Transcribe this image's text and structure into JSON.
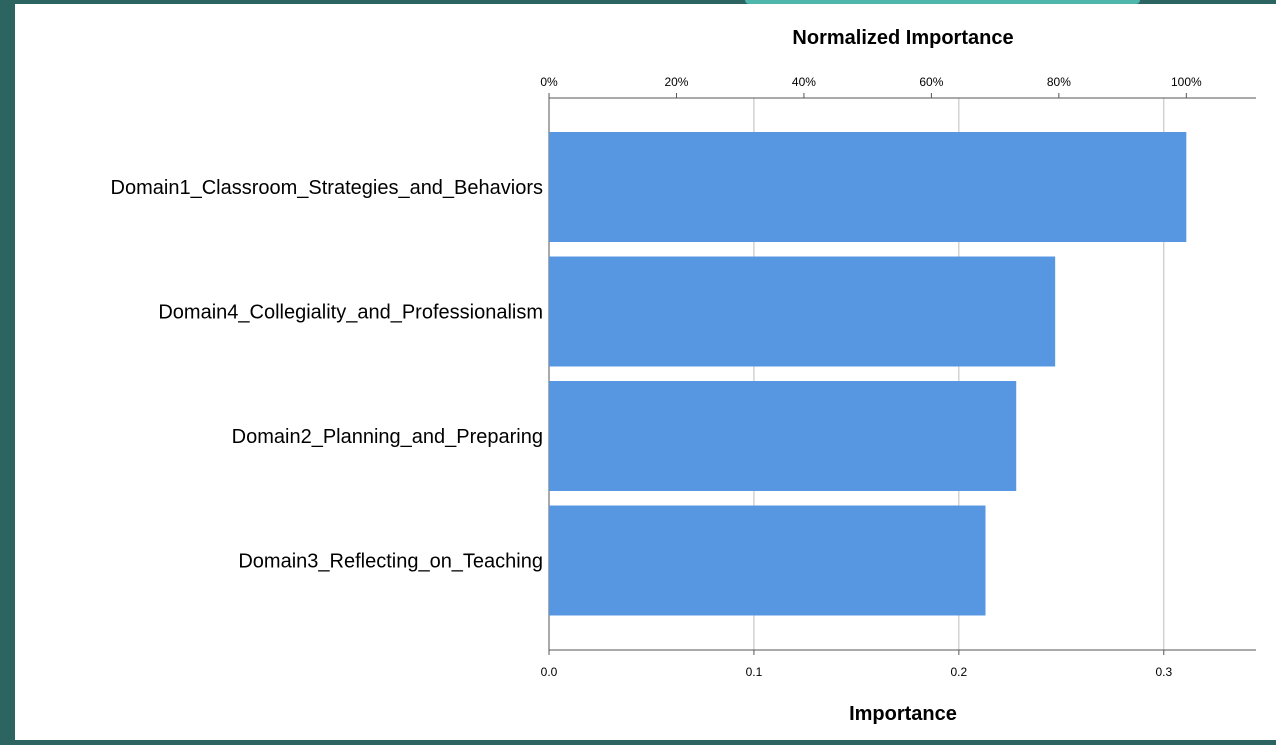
{
  "chart_data": {
    "type": "bar",
    "orientation": "horizontal",
    "categories": [
      "Domain1_Classroom_Strategies_and_Behaviors",
      "Domain4_Collegiality_and_Professionalism",
      "Domain2_Planning_and_Preparing",
      "Domain3_Reflecting_on_Teaching"
    ],
    "values": [
      0.311,
      0.247,
      0.228,
      0.213
    ],
    "xlabel": "Importance",
    "top_axis_label": "Normalized Importance",
    "xlim": [
      0,
      0.345
    ],
    "bottom_ticks": [
      0.0,
      0.1,
      0.2,
      0.3
    ],
    "bottom_tick_labels": [
      "0.0",
      "0.1",
      "0.2",
      "0.3"
    ],
    "top_ticks": [
      0,
      0.2,
      0.4,
      0.6,
      0.8,
      1.0
    ],
    "top_tick_labels": [
      "0%",
      "20%",
      "40%",
      "60%",
      "80%",
      "100%"
    ],
    "grid": true,
    "bar_color": "#5797e2",
    "grid_color": "#bdbdbd"
  },
  "colors": {
    "background": "#2c6462",
    "accent": "#4fb6ad"
  }
}
